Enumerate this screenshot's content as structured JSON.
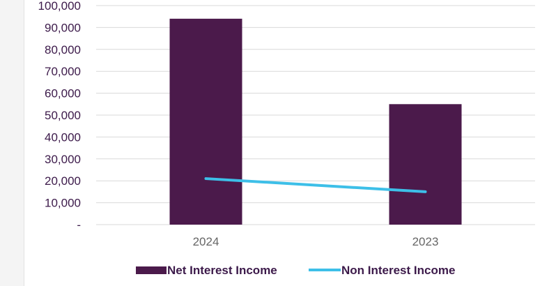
{
  "colors": {
    "bar": "#4b1a4b",
    "line": "#3dbfe8",
    "grid": "#d9d9d9",
    "axis_text": "#3c1a4a",
    "category_text": "#666666"
  },
  "chart_data": {
    "type": "bar",
    "categories": [
      "2024",
      "2023"
    ],
    "series": [
      {
        "name": "Net Interest Income",
        "type": "bar",
        "values": [
          94000,
          55000
        ]
      },
      {
        "name": "Non Interest Income",
        "type": "line",
        "values": [
          21000,
          15000
        ]
      }
    ],
    "ylim": [
      0,
      100000
    ],
    "y_ticks": [
      {
        "value": 100000,
        "label": "100,000"
      },
      {
        "value": 90000,
        "label": "90,000"
      },
      {
        "value": 80000,
        "label": "80,000"
      },
      {
        "value": 70000,
        "label": "70,000"
      },
      {
        "value": 60000,
        "label": "60,000"
      },
      {
        "value": 50000,
        "label": "50,000"
      },
      {
        "value": 40000,
        "label": "40,000"
      },
      {
        "value": 30000,
        "label": "30,000"
      },
      {
        "value": 20000,
        "label": "20,000"
      },
      {
        "value": 10000,
        "label": "10,000"
      },
      {
        "value": 0,
        "label": "-"
      }
    ],
    "grid": true,
    "legend_position": "bottom-center"
  }
}
